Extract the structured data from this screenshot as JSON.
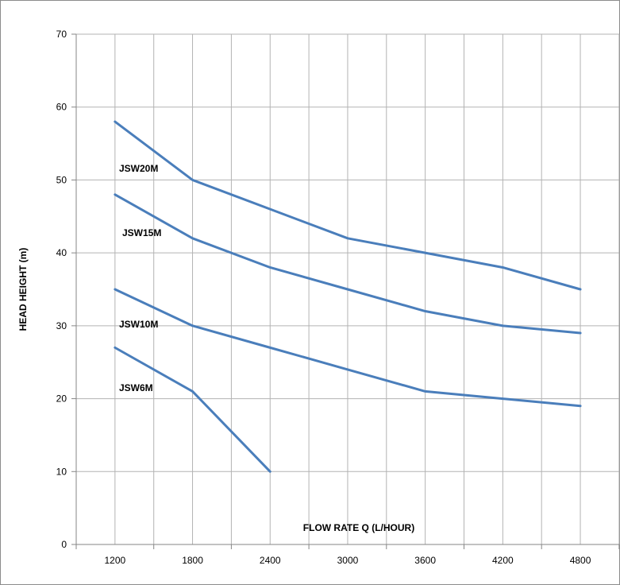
{
  "chart_data": {
    "type": "line",
    "title": "",
    "xlabel": "FLOW RATE Q (L/HOUR)",
    "ylabel": "HEAD HEIGHT (m)",
    "x": [
      1200,
      1800,
      2400,
      3000,
      3600,
      4200,
      4800
    ],
    "x_tick_labels": [
      "1200",
      "1800",
      "2400",
      "3000",
      "3600",
      "4200",
      "4800"
    ],
    "y_tick_labels": [
      "0",
      "10",
      "20",
      "30",
      "40",
      "50",
      "60",
      "70"
    ],
    "ylim": [
      0,
      70
    ],
    "grid": true,
    "line_color": "#4a7ebb",
    "series": [
      {
        "name": "JSW20M",
        "x": [
          1200,
          1800,
          2400,
          3000,
          3600,
          4200,
          4800
        ],
        "values": [
          58,
          50,
          46,
          42,
          40,
          38,
          35
        ]
      },
      {
        "name": "JSW15M",
        "x": [
          1200,
          1800,
          2400,
          3000,
          3600,
          4200,
          4800
        ],
        "values": [
          48,
          42,
          38,
          35,
          32,
          30,
          29
        ]
      },
      {
        "name": "JSW10M",
        "x": [
          1200,
          1800,
          2400,
          3000,
          3600,
          4200,
          4800
        ],
        "values": [
          35,
          30,
          27,
          24,
          21,
          20,
          19
        ]
      },
      {
        "name": "JSW6M",
        "x": [
          1200,
          1800,
          2400
        ],
        "values": [
          27,
          21,
          10
        ]
      }
    ]
  }
}
